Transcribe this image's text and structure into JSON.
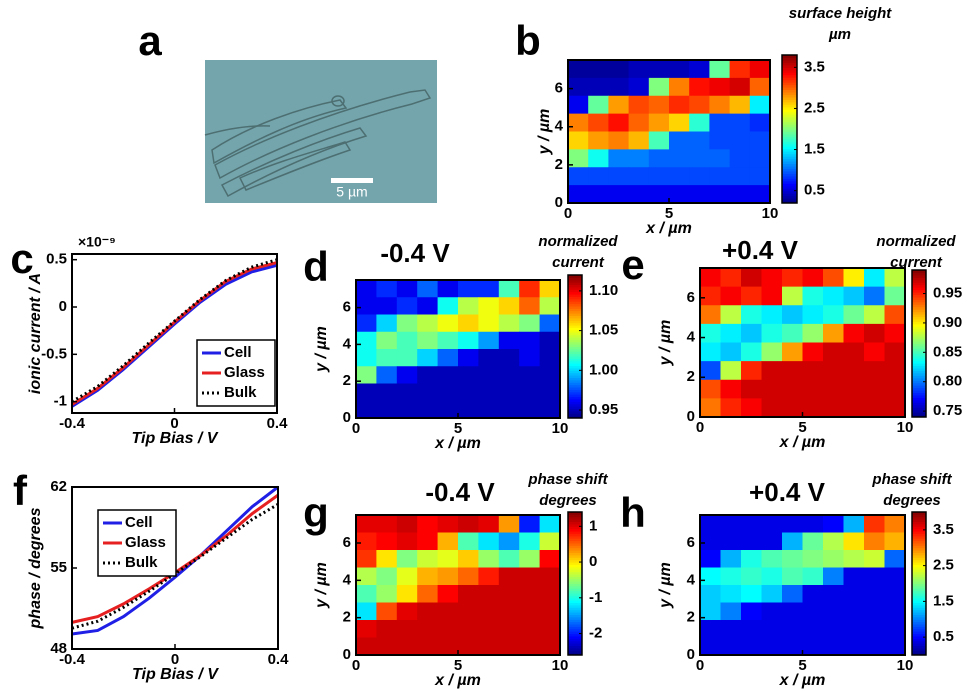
{
  "panel_labels": [
    "a",
    "b",
    "c",
    "d",
    "e",
    "f",
    "g",
    "h"
  ],
  "image": {
    "scale_bar_label": "5 µm"
  },
  "chart_data": [
    {
      "type": "heatmap",
      "colorbar_label": [
        "surface height",
        "µm"
      ],
      "xlabel": "x / µm",
      "ylabel": "y / µm",
      "colormap": "jet",
      "xlim": [
        0,
        10
      ],
      "xticks": [
        0,
        5,
        10
      ],
      "ylim": [
        0,
        7.5
      ],
      "yticks": [
        0,
        2,
        4,
        6
      ],
      "zlim": [
        0.2,
        3.8
      ],
      "zticks": [
        0.5,
        1.5,
        2.5,
        3.5
      ],
      "z": [
        [
          0.3,
          0.3,
          0.3,
          0.4,
          0.4,
          0.4,
          0.5,
          1.9,
          3.2,
          3.4
        ],
        [
          0.4,
          0.4,
          0.4,
          0.5,
          2.0,
          2.9,
          3.3,
          3.4,
          3.5,
          3.0
        ],
        [
          0.6,
          1.9,
          2.8,
          3.1,
          3.0,
          3.2,
          3.1,
          2.9,
          2.7,
          1.5
        ],
        [
          2.9,
          3.1,
          3.3,
          3.0,
          2.8,
          2.6,
          1.7,
          0.9,
          0.9,
          0.8
        ],
        [
          2.6,
          2.8,
          2.9,
          2.7,
          1.8,
          1.0,
          1.0,
          0.9,
          0.9,
          0.9
        ],
        [
          2.0,
          1.6,
          1.1,
          1.1,
          1.0,
          1.0,
          1.0,
          1.0,
          0.9,
          0.9
        ],
        [
          0.9,
          0.9,
          0.9,
          0.9,
          0.9,
          0.9,
          0.9,
          0.9,
          0.9,
          0.9
        ],
        [
          0.6,
          0.6,
          0.6,
          0.6,
          0.6,
          0.6,
          0.6,
          0.6,
          0.6,
          0.6
        ]
      ]
    },
    {
      "type": "line",
      "xlabel": "Tip Bias / V",
      "ylabel": "ionic current / A",
      "y_exponent": "×10⁻⁹",
      "legend": "lower right",
      "x": [
        -0.4,
        -0.3,
        -0.2,
        -0.1,
        0,
        0.1,
        0.2,
        0.3,
        0.4
      ],
      "xlim": [
        -0.4,
        0.4
      ],
      "xticks": [
        -0.4,
        0,
        0.4
      ],
      "ylim": [
        -1.12,
        0.56
      ],
      "yticks": [
        -1,
        -0.5,
        0,
        0.5
      ],
      "series": [
        {
          "name": "Cell",
          "color": "#1f1fe6",
          "linestyle": "solid",
          "values": [
            -1.05,
            -0.88,
            -0.66,
            -0.42,
            -0.18,
            0.05,
            0.24,
            0.37,
            0.44
          ]
        },
        {
          "name": "Glass",
          "color": "#e62020",
          "linestyle": "solid",
          "values": [
            -1.03,
            -0.86,
            -0.64,
            -0.4,
            -0.16,
            0.07,
            0.27,
            0.4,
            0.47
          ]
        },
        {
          "name": "Bulk",
          "color": "#000000",
          "linestyle": "dotted",
          "values": [
            -1.0,
            -0.84,
            -0.62,
            -0.38,
            -0.15,
            0.08,
            0.28,
            0.42,
            0.5
          ]
        }
      ]
    },
    {
      "type": "heatmap",
      "title": "-0.4 V",
      "colorbar_label": [
        "normalized",
        "current"
      ],
      "xlabel": "x / µm",
      "ylabel": "y / µm",
      "colormap": "jet",
      "xlim": [
        0,
        10
      ],
      "xticks": [
        0,
        5,
        10
      ],
      "ylim": [
        0,
        7.5
      ],
      "yticks": [
        0,
        2,
        4,
        6
      ],
      "zlim": [
        0.94,
        1.12
      ],
      "zticks": [
        0.95,
        {
          "value": 1,
          "label": "1.00"
        },
        1.05,
        {
          "value": 1.1,
          "label": "1.10"
        }
      ],
      "z": [
        [
          0.96,
          0.97,
          0.96,
          0.98,
          0.96,
          0.97,
          0.97,
          1.02,
          1.09,
          1.06
        ],
        [
          0.96,
          0.96,
          0.97,
          0.96,
          1.01,
          1.04,
          1.05,
          1.06,
          1.08,
          1.04
        ],
        [
          0.97,
          1.0,
          1.03,
          1.04,
          1.05,
          1.06,
          1.05,
          1.04,
          1.03,
          0.98
        ],
        [
          1.01,
          1.03,
          1.02,
          1.03,
          1.02,
          1.01,
          0.99,
          0.96,
          0.96,
          0.95
        ],
        [
          1.01,
          1.02,
          1.02,
          1.0,
          0.98,
          0.96,
          0.95,
          0.95,
          0.96,
          0.95
        ],
        [
          1.03,
          0.98,
          0.96,
          0.95,
          0.95,
          0.95,
          0.95,
          0.95,
          0.95,
          0.95
        ],
        [
          0.95,
          0.95,
          0.95,
          0.95,
          0.95,
          0.95,
          0.95,
          0.95,
          0.95,
          0.95
        ],
        [
          0.95,
          0.95,
          0.95,
          0.95,
          0.95,
          0.95,
          0.95,
          0.95,
          0.95,
          0.95
        ]
      ]
    },
    {
      "type": "heatmap",
      "title": "+0.4 V",
      "colorbar_label": [
        "normalized",
        "current"
      ],
      "xlabel": "x / µm",
      "ylabel": "y / µm",
      "colormap": "jet",
      "xlim": [
        0,
        10
      ],
      "xticks": [
        0,
        5,
        10
      ],
      "ylim": [
        0,
        7.5
      ],
      "yticks": [
        0,
        2,
        4,
        6
      ],
      "zlim": [
        0.74,
        0.99
      ],
      "zticks": [
        0.75,
        {
          "value": 0.8,
          "label": "0.80"
        },
        0.85,
        {
          "value": 0.9,
          "label": "0.90"
        },
        0.95
      ],
      "z": [
        [
          0.96,
          0.95,
          0.97,
          0.96,
          0.95,
          0.96,
          0.94,
          0.9,
          0.83,
          0.88
        ],
        [
          0.95,
          0.96,
          0.95,
          0.96,
          0.88,
          0.84,
          0.83,
          0.82,
          0.8,
          0.86
        ],
        [
          0.93,
          0.88,
          0.84,
          0.83,
          0.82,
          0.83,
          0.84,
          0.86,
          0.88,
          0.94
        ],
        [
          0.84,
          0.83,
          0.82,
          0.84,
          0.85,
          0.87,
          0.92,
          0.96,
          0.97,
          0.96
        ],
        [
          0.83,
          0.82,
          0.84,
          0.87,
          0.92,
          0.96,
          0.97,
          0.97,
          0.96,
          0.97
        ],
        [
          0.79,
          0.88,
          0.95,
          0.97,
          0.97,
          0.97,
          0.97,
          0.97,
          0.97,
          0.97
        ],
        [
          0.94,
          0.96,
          0.97,
          0.97,
          0.97,
          0.97,
          0.97,
          0.97,
          0.97,
          0.97
        ],
        [
          0.93,
          0.95,
          0.96,
          0.97,
          0.97,
          0.97,
          0.97,
          0.97,
          0.97,
          0.97
        ]
      ]
    },
    {
      "type": "line",
      "xlabel": "Tip Bias / V",
      "ylabel": "phase / degrees",
      "legend": "upper left",
      "x": [
        -0.4,
        -0.3,
        -0.2,
        -0.1,
        0,
        0.1,
        0.2,
        0.3,
        0.4
      ],
      "xlim": [
        -0.4,
        0.4
      ],
      "xticks": [
        -0.4,
        0,
        0.4
      ],
      "ylim": [
        48,
        62
      ],
      "yticks": [
        48,
        55,
        62
      ],
      "series": [
        {
          "name": "Cell",
          "color": "#1f1fe6",
          "linestyle": "solid",
          "values": [
            49.3,
            49.6,
            50.8,
            52.4,
            54.2,
            56.1,
            58.2,
            60.3,
            62.0
          ]
        },
        {
          "name": "Glass",
          "color": "#e62020",
          "linestyle": "solid",
          "values": [
            50.3,
            50.8,
            51.9,
            53.2,
            54.6,
            56.1,
            57.8,
            59.7,
            61.3
          ]
        },
        {
          "name": "Bulk",
          "color": "#000000",
          "linestyle": "dotted",
          "values": [
            49.8,
            50.4,
            51.6,
            53.0,
            54.5,
            56.0,
            57.6,
            59.2,
            60.5
          ]
        }
      ]
    },
    {
      "type": "heatmap",
      "title": "-0.4 V",
      "colorbar_label": [
        "phase shift",
        "degrees"
      ],
      "xlabel": "x / µm",
      "ylabel": "y / µm",
      "colormap": "jet",
      "xlim": [
        0,
        10
      ],
      "xticks": [
        0,
        5,
        10
      ],
      "ylim": [
        0,
        7.5
      ],
      "yticks": [
        0,
        2,
        4,
        6
      ],
      "zlim": [
        -2.6,
        1.4
      ],
      "zticks": [
        1,
        0,
        -1,
        -2
      ],
      "z": [
        [
          1.0,
          1.0,
          1.1,
          0.9,
          1.0,
          1.1,
          1.0,
          0.3,
          -2.0,
          -1.2
        ],
        [
          0.8,
          0.9,
          1.0,
          0.9,
          0.2,
          -0.8,
          -1.2,
          -1.5,
          -1.0,
          -0.3
        ],
        [
          0.7,
          0.0,
          -0.6,
          -0.3,
          -0.2,
          0.1,
          -0.5,
          -0.8,
          -0.5,
          0.9
        ],
        [
          -0.4,
          -0.6,
          -0.2,
          0.2,
          0.3,
          0.5,
          0.8,
          1.1,
          1.1,
          1.1
        ],
        [
          -0.8,
          -0.5,
          0.0,
          0.5,
          0.9,
          1.1,
          1.1,
          1.1,
          1.1,
          1.1
        ],
        [
          -1.2,
          0.6,
          1.0,
          1.1,
          1.1,
          1.1,
          1.1,
          1.1,
          1.1,
          1.1
        ],
        [
          1.0,
          1.1,
          1.1,
          1.1,
          1.1,
          1.1,
          1.1,
          1.1,
          1.1,
          1.1
        ],
        [
          1.1,
          1.1,
          1.1,
          1.1,
          1.1,
          1.1,
          1.1,
          1.1,
          1.1,
          1.1
        ]
      ]
    },
    {
      "type": "heatmap",
      "title": "+0.4 V",
      "colorbar_label": [
        "phase shift",
        "degrees"
      ],
      "xlabel": "x / µm",
      "ylabel": "y / µm",
      "colormap": "jet",
      "xlim": [
        0,
        10
      ],
      "xticks": [
        0,
        5,
        10
      ],
      "ylim": [
        0,
        7.5
      ],
      "yticks": [
        0,
        2,
        4,
        6
      ],
      "zlim": [
        0,
        4
      ],
      "zticks": [
        0.5,
        1.5,
        2.5,
        3.5
      ],
      "z": [
        [
          0.4,
          0.4,
          0.4,
          0.4,
          0.4,
          0.4,
          0.5,
          1.2,
          3.3,
          3.0
        ],
        [
          0.4,
          0.4,
          0.4,
          0.4,
          1.2,
          1.9,
          2.2,
          2.6,
          3.0,
          2.8
        ],
        [
          0.5,
          1.2,
          1.6,
          1.8,
          1.9,
          2.0,
          2.1,
          2.2,
          2.3,
          0.9
        ],
        [
          1.5,
          1.6,
          1.7,
          1.6,
          1.8,
          1.7,
          1.0,
          0.4,
          0.4,
          0.4
        ],
        [
          1.3,
          1.4,
          1.5,
          1.3,
          0.9,
          0.4,
          0.4,
          0.4,
          0.4,
          0.4
        ],
        [
          1.3,
          1.0,
          0.5,
          0.4,
          0.4,
          0.4,
          0.4,
          0.4,
          0.4,
          0.4
        ],
        [
          0.4,
          0.4,
          0.4,
          0.4,
          0.4,
          0.4,
          0.4,
          0.4,
          0.4,
          0.4
        ],
        [
          0.4,
          0.4,
          0.4,
          0.4,
          0.4,
          0.4,
          0.4,
          0.4,
          0.4,
          0.4
        ]
      ]
    }
  ]
}
